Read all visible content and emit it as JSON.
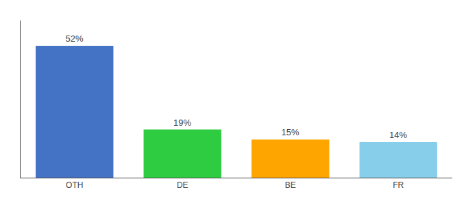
{
  "chart_data": {
    "type": "bar",
    "categories": [
      "OTH",
      "DE",
      "BE",
      "FR"
    ],
    "values": [
      52,
      19,
      15,
      14
    ],
    "value_labels": [
      "52%",
      "19%",
      "15%",
      "14%"
    ],
    "colors": [
      "#4472C4",
      "#2ECC40",
      "#FFA500",
      "#87CEEB"
    ],
    "ylim": [
      0,
      62
    ],
    "data_labels": true,
    "tick_labels": "x",
    "grid": false
  }
}
